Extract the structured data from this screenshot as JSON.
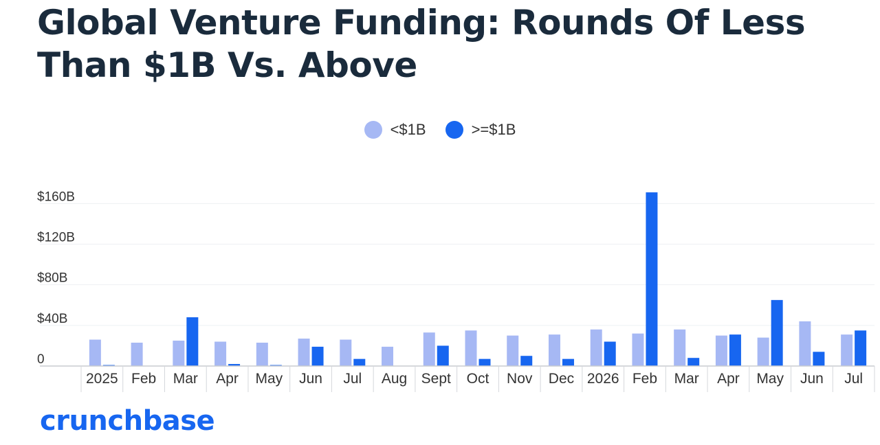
{
  "chart_data": {
    "type": "bar",
    "title": "Global Venture Funding: Rounds Of Less Than $1B Vs. Above",
    "categories": [
      "2025",
      "Feb",
      "Mar",
      "Apr",
      "May",
      "Jun",
      "Jul",
      "Aug",
      "Sept",
      "Oct",
      "Nov",
      "Dec",
      "2026",
      "Feb",
      "Mar",
      "Apr",
      "May",
      "Jun",
      "Jul"
    ],
    "series": [
      {
        "name": "<$1B",
        "color": "#a6b8f4",
        "values": [
          26,
          23,
          25,
          24,
          23,
          27,
          26,
          19,
          33,
          35,
          30,
          31,
          36,
          32,
          36,
          30,
          28,
          44,
          31
        ]
      },
      {
        "name": ">=$1B",
        "color": "#1766f0",
        "values": [
          1,
          0,
          48,
          2,
          1,
          19,
          7,
          0,
          20,
          7,
          10,
          7,
          24,
          171,
          8,
          31,
          65,
          14,
          35
        ]
      }
    ],
    "yticks": [
      {
        "value": 0,
        "label": "0"
      },
      {
        "value": 40,
        "label": "$40B"
      },
      {
        "value": 80,
        "label": "$80B"
      },
      {
        "value": 120,
        "label": "$120B"
      },
      {
        "value": 160,
        "label": "$160B"
      }
    ],
    "ylim": [
      0,
      175
    ],
    "grid": true,
    "legend_position": "top-center"
  },
  "brand": {
    "name": "crunchbase",
    "color": "#1766f0"
  }
}
